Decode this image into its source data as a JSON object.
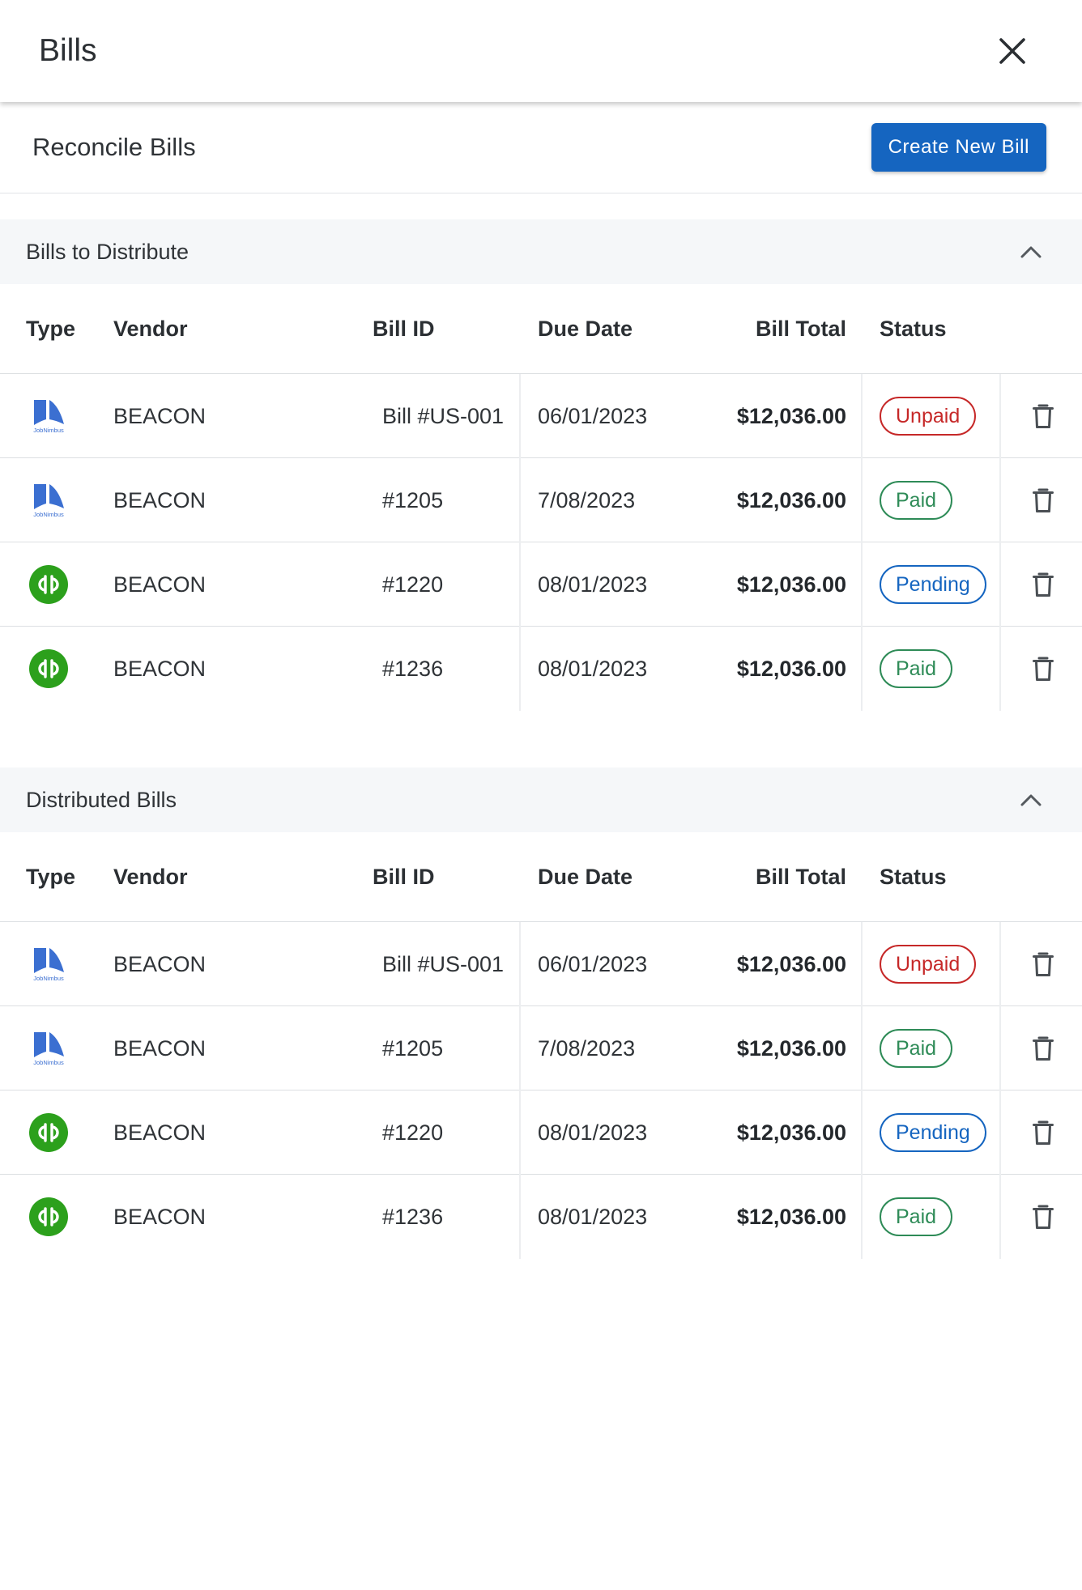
{
  "header": {
    "title": "Bills"
  },
  "subbar": {
    "title": "Reconcile Bills",
    "create_label": "Create New Bill"
  },
  "columns": {
    "type": "Type",
    "vendor": "Vendor",
    "bill_id": "Bill ID",
    "due_date": "Due Date",
    "bill_total": "Bill Total",
    "status": "Status"
  },
  "colors": {
    "accent": "#1565c0",
    "unpaid": "#c62828",
    "paid": "#2e8b57",
    "pending": "#1565c0",
    "qb_green": "#2ca01c",
    "jn_blue": "#3b6fd1"
  },
  "sections": [
    {
      "title": "Bills to Distribute",
      "rows": [
        {
          "type_icon": "jobnimbus-logo-icon",
          "vendor": "BEACON",
          "bill_id": "Bill #US-001",
          "due_date": "06/01/2023",
          "total": "$12,036.00",
          "status": "Unpaid"
        },
        {
          "type_icon": "jobnimbus-logo-icon",
          "vendor": "BEACON",
          "bill_id": "#1205",
          "due_date": "7/08/2023",
          "total": "$12,036.00",
          "status": "Paid"
        },
        {
          "type_icon": "quickbooks-logo-icon",
          "vendor": "BEACON",
          "bill_id": "#1220",
          "due_date": "08/01/2023",
          "total": "$12,036.00",
          "status": "Pending"
        },
        {
          "type_icon": "quickbooks-logo-icon",
          "vendor": "BEACON",
          "bill_id": "#1236",
          "due_date": "08/01/2023",
          "total": "$12,036.00",
          "status": "Paid"
        }
      ]
    },
    {
      "title": "Distributed Bills",
      "rows": [
        {
          "type_icon": "jobnimbus-logo-icon",
          "vendor": "BEACON",
          "bill_id": "Bill #US-001",
          "due_date": "06/01/2023",
          "total": "$12,036.00",
          "status": "Unpaid"
        },
        {
          "type_icon": "jobnimbus-logo-icon",
          "vendor": "BEACON",
          "bill_id": "#1205",
          "due_date": "7/08/2023",
          "total": "$12,036.00",
          "status": "Paid"
        },
        {
          "type_icon": "quickbooks-logo-icon",
          "vendor": "BEACON",
          "bill_id": "#1220",
          "due_date": "08/01/2023",
          "total": "$12,036.00",
          "status": "Pending"
        },
        {
          "type_icon": "quickbooks-logo-icon",
          "vendor": "BEACON",
          "bill_id": "#1236",
          "due_date": "08/01/2023",
          "total": "$12,036.00",
          "status": "Paid"
        }
      ]
    }
  ]
}
